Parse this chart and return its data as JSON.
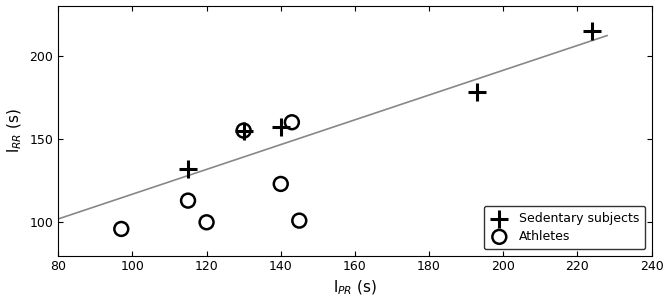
{
  "sedentary_x": [
    115,
    130,
    140,
    193,
    224
  ],
  "sedentary_y": [
    132,
    155,
    157,
    178,
    215
  ],
  "athlete_x": [
    97,
    115,
    120,
    130,
    140,
    143,
    145
  ],
  "athlete_y": [
    96,
    113,
    100,
    155,
    123,
    160,
    101
  ],
  "line_x": [
    80,
    228
  ],
  "line_y": [
    102,
    212
  ],
  "xlim": [
    80,
    240
  ],
  "ylim": [
    80,
    230
  ],
  "xticks": [
    80,
    100,
    120,
    140,
    160,
    180,
    200,
    220,
    240
  ],
  "yticks": [
    100,
    150,
    200
  ],
  "xlabel": "l$_{PR}$ (s)",
  "ylabel": "l$_{RR}$ (s)",
  "legend_labels": [
    "Sedentary subjects",
    "Athletes"
  ],
  "line_color": "#888888",
  "marker_color": "black",
  "background_color": "#ffffff",
  "figsize": [
    6.69,
    3.03
  ],
  "dpi": 100
}
